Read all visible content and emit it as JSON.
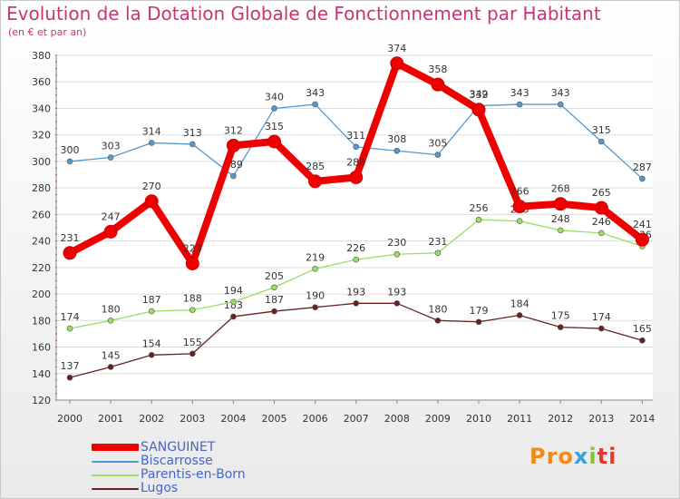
{
  "chart_data": {
    "type": "line",
    "title": "Evolution de la Dotation Globale de Fonctionnement par Habitant",
    "subtitle": "(en € et par an)",
    "x": [
      "2000",
      "2001",
      "2002",
      "2003",
      "2004",
      "2005",
      "2006",
      "2007",
      "2008",
      "2009",
      "2010",
      "2011",
      "2012",
      "2013",
      "2014"
    ],
    "ylim": [
      120,
      380
    ],
    "yticks": [
      120,
      140,
      160,
      180,
      200,
      220,
      240,
      260,
      280,
      300,
      320,
      340,
      360,
      380
    ],
    "grid": "horizontal",
    "legend": "bottom-left",
    "series": [
      {
        "name": "SANGUINET",
        "color": "#ee0000",
        "values": [
          231,
          247,
          270,
          223,
          312,
          315,
          285,
          288,
          374,
          358,
          339,
          266,
          268,
          265,
          241
        ]
      },
      {
        "name": "Biscarrosse",
        "color": "#5599cc",
        "values": [
          300,
          303,
          314,
          313,
          289,
          340,
          343,
          311,
          308,
          305,
          342,
          343,
          343,
          315,
          287
        ]
      },
      {
        "name": "Parentis-en-Born",
        "color": "#99dd66",
        "values": [
          174,
          180,
          187,
          188,
          194,
          205,
          219,
          226,
          230,
          231,
          256,
          255,
          248,
          246,
          236
        ]
      },
      {
        "name": "Lugos",
        "color": "#662222",
        "values": [
          137,
          145,
          154,
          155,
          183,
          187,
          190,
          193,
          193,
          180,
          179,
          184,
          175,
          174,
          165
        ]
      }
    ]
  },
  "logo": {
    "parts": [
      "Pro",
      "x",
      "i",
      "ti"
    ]
  }
}
